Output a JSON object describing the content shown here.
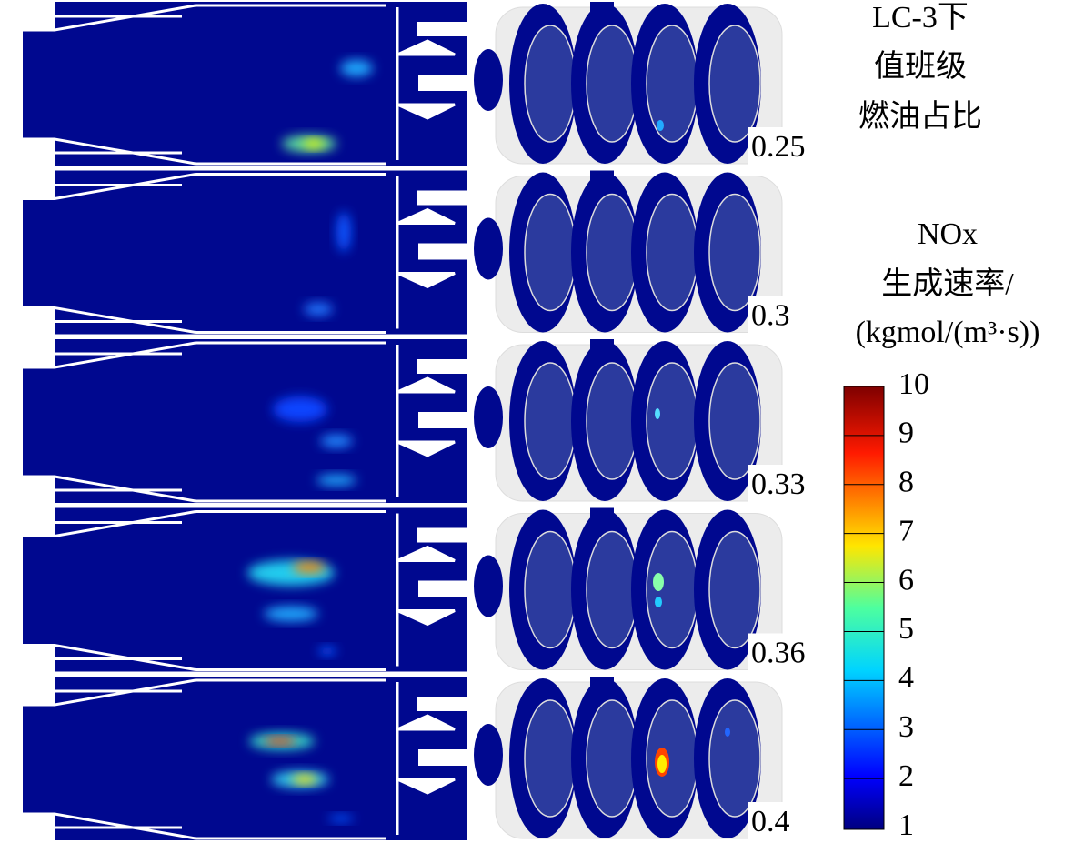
{
  "title": [
    "LC-3下",
    "值班级",
    "燃油占比"
  ],
  "panels": [
    "0.25",
    "0.3",
    "0.33",
    "0.36",
    "0.4"
  ],
  "colorbar": {
    "title": [
      "NOx",
      "生成速率/",
      "(kgmol/(m³·s))"
    ],
    "ticks": [
      "1",
      "2",
      "3",
      "4",
      "5",
      "6",
      "7",
      "8",
      "9",
      "10"
    ]
  }
}
